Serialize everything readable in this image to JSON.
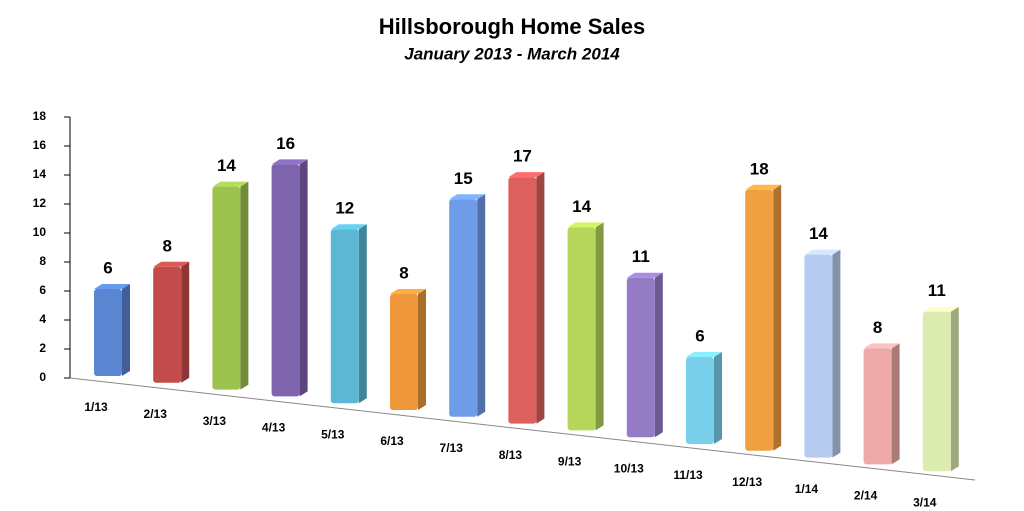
{
  "chart_data": {
    "type": "bar",
    "title": "Hillsborough Home Sales",
    "subtitle": "January 2013 - March 2014",
    "categories": [
      "1/13",
      "2/13",
      "3/13",
      "4/13",
      "5/13",
      "6/13",
      "7/13",
      "8/13",
      "9/13",
      "10/13",
      "11/13",
      "12/13",
      "1/14",
      "2/14",
      "3/14"
    ],
    "values": [
      6,
      8,
      14,
      16,
      12,
      8,
      15,
      17,
      14,
      11,
      6,
      18,
      14,
      8,
      11
    ],
    "colors": [
      "#5b86d2",
      "#c24c4b",
      "#9cc24f",
      "#7e63ad",
      "#5bb7d3",
      "#ee983b",
      "#6f9ce8",
      "#dc605e",
      "#b5d65b",
      "#957bc6",
      "#78d0ea",
      "#f0a040",
      "#b7cbf0",
      "#eca9a7",
      "#dcebaf"
    ],
    "ylim": [
      0,
      18
    ],
    "yticks": [
      0,
      2,
      4,
      6,
      8,
      10,
      12,
      14,
      16,
      18
    ]
  }
}
